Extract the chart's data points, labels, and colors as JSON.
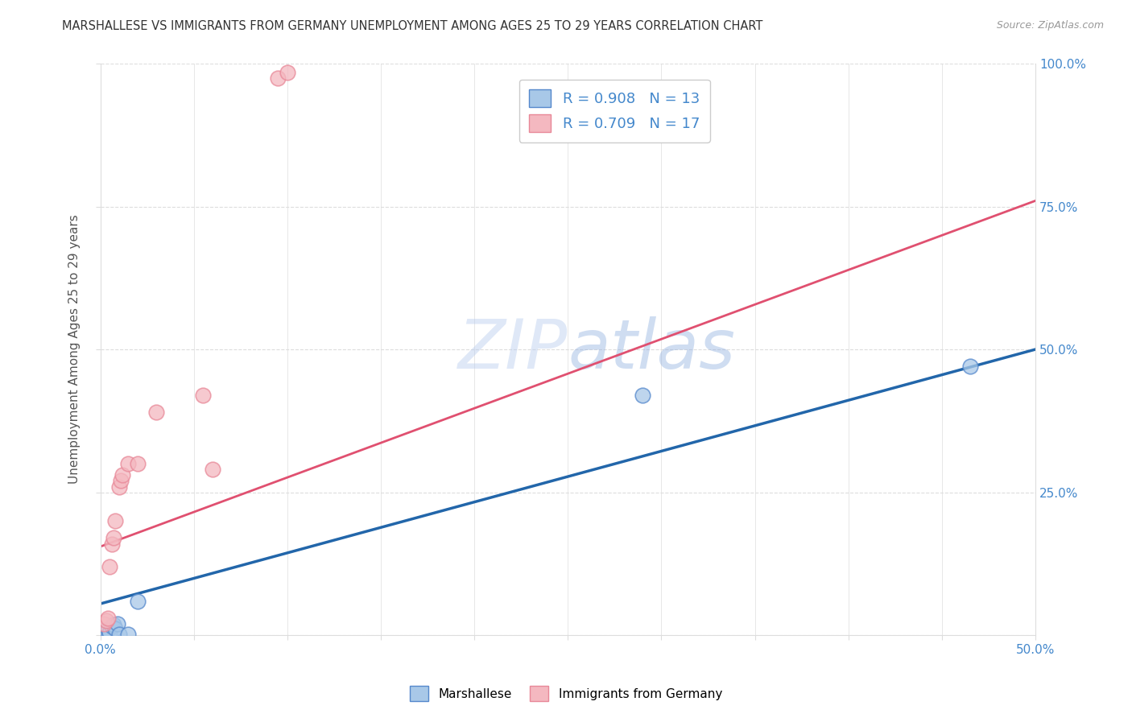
{
  "title": "MARSHALLESE VS IMMIGRANTS FROM GERMANY UNEMPLOYMENT AMONG AGES 25 TO 29 YEARS CORRELATION CHART",
  "source": "Source: ZipAtlas.com",
  "ylabel": "Unemployment Among Ages 25 to 29 years",
  "xlim": [
    0.0,
    0.5
  ],
  "ylim": [
    0.0,
    1.0
  ],
  "xticks": [
    0.0,
    0.05,
    0.1,
    0.15,
    0.2,
    0.25,
    0.3,
    0.35,
    0.4,
    0.45,
    0.5
  ],
  "yticks": [
    0.0,
    0.25,
    0.5,
    0.75,
    1.0
  ],
  "xticklabels": [
    "0.0%",
    "",
    "",
    "",
    "",
    "",
    "",
    "",
    "",
    "",
    "50.0%"
  ],
  "yticklabels_right": [
    "",
    "25.0%",
    "50.0%",
    "75.0%",
    "100.0%"
  ],
  "blue_fill": "#a8c8e8",
  "blue_edge": "#5588cc",
  "blue_line": "#2266aa",
  "pink_fill": "#f4b8c0",
  "pink_edge": "#e88898",
  "pink_line": "#e05070",
  "marshallese_points": [
    [
      0.002,
      0.005
    ],
    [
      0.003,
      0.008
    ],
    [
      0.004,
      0.01
    ],
    [
      0.005,
      0.005
    ],
    [
      0.006,
      0.015
    ],
    [
      0.007,
      0.018
    ],
    [
      0.008,
      0.012
    ],
    [
      0.009,
      0.02
    ],
    [
      0.01,
      0.002
    ],
    [
      0.015,
      0.002
    ],
    [
      0.02,
      0.06
    ],
    [
      0.29,
      0.42
    ],
    [
      0.465,
      0.47
    ]
  ],
  "germany_points": [
    [
      0.002,
      0.02
    ],
    [
      0.003,
      0.025
    ],
    [
      0.004,
      0.03
    ],
    [
      0.005,
      0.12
    ],
    [
      0.006,
      0.16
    ],
    [
      0.007,
      0.17
    ],
    [
      0.008,
      0.2
    ],
    [
      0.01,
      0.26
    ],
    [
      0.011,
      0.27
    ],
    [
      0.012,
      0.28
    ],
    [
      0.015,
      0.3
    ],
    [
      0.02,
      0.3
    ],
    [
      0.03,
      0.39
    ],
    [
      0.055,
      0.42
    ],
    [
      0.06,
      0.29
    ],
    [
      0.095,
      0.975
    ],
    [
      0.1,
      0.985
    ]
  ],
  "blue_line_x": [
    0.0,
    0.5
  ],
  "blue_line_y": [
    0.055,
    0.5
  ],
  "pink_line_x": [
    0.0,
    0.5
  ],
  "pink_line_y": [
    0.155,
    0.76
  ],
  "watermark_zip": "ZIP",
  "watermark_atlas": "atlas",
  "background_color": "#ffffff",
  "grid_color": "#dddddd",
  "tick_label_color": "#4488cc",
  "ylabel_color": "#555555",
  "title_color": "#333333",
  "source_color": "#999999",
  "legend_text_color": "#4488cc",
  "legend_blue_label": "R = 0.908   N = 13",
  "legend_pink_label": "R = 0.709   N = 17",
  "bottom_legend_blue": "Marshallese",
  "bottom_legend_pink": "Immigrants from Germany"
}
